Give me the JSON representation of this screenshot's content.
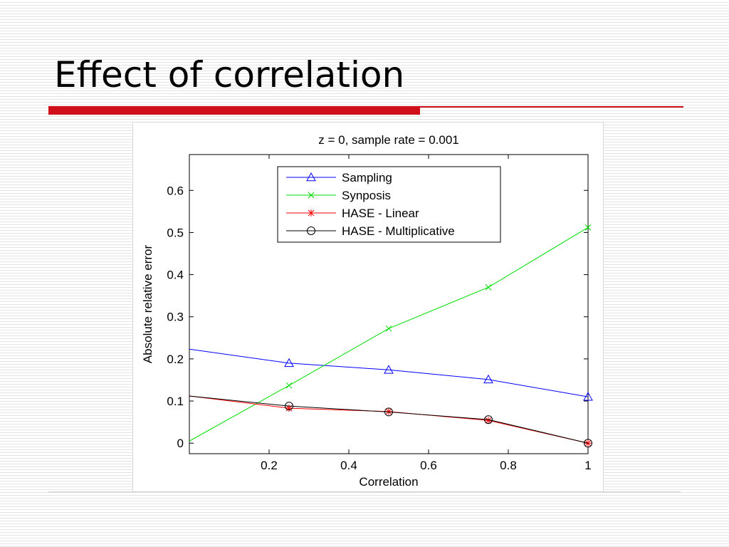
{
  "slide": {
    "title": "Effect of correlation"
  },
  "colors": {
    "accent": "#d0111b"
  },
  "chart_data": {
    "type": "line",
    "title": "z = 0, sample rate = 0.001",
    "xlabel": "Correlation",
    "ylabel": "Absolute relative error",
    "xlim": [
      0,
      1
    ],
    "ylim": [
      -0.025,
      0.685
    ],
    "xticks": [
      0.2,
      0.4,
      0.6,
      0.8,
      1
    ],
    "xtick_labels": [
      "0.2",
      "0.4",
      "0.6",
      "0.8",
      "1"
    ],
    "yticks": [
      0,
      0.1,
      0.2,
      0.3,
      0.4,
      0.5,
      0.6
    ],
    "ytick_labels": [
      "0",
      "0.1",
      "0.2",
      "0.3",
      "0.4",
      "0.5",
      "0.6"
    ],
    "grid": false,
    "legend_position": "top-center",
    "series": [
      {
        "name": "Sampling",
        "color": "#0000ff",
        "marker": "triangle",
        "x": [
          0,
          0.25,
          0.5,
          0.75,
          1
        ],
        "y": [
          0.223,
          0.19,
          0.174,
          0.151,
          0.11
        ]
      },
      {
        "name": "Synposis",
        "color": "#00dd00",
        "marker": "x",
        "x": [
          0,
          0.25,
          0.5,
          0.75,
          1
        ],
        "y": [
          0.005,
          0.137,
          0.272,
          0.37,
          0.512
        ]
      },
      {
        "name": "HASE - Linear",
        "color": "#ff0000",
        "marker": "star",
        "x": [
          0,
          0.25,
          0.5,
          0.75,
          1
        ],
        "y": [
          0.112,
          0.083,
          0.075,
          0.054,
          0.0
        ]
      },
      {
        "name": "HASE - Multiplicative",
        "color": "#000000",
        "marker": "circle",
        "x": [
          0,
          0.25,
          0.5,
          0.75,
          1
        ],
        "y": [
          0.112,
          0.088,
          0.074,
          0.056,
          0.0
        ]
      }
    ]
  }
}
